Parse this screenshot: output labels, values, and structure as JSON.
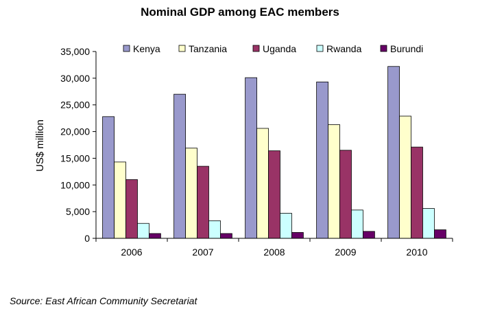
{
  "chart_data": {
    "type": "bar",
    "title": "Nominal GDP among EAC members",
    "xlabel": "",
    "ylabel": "US$ million",
    "categories": [
      "2006",
      "2007",
      "2008",
      "2009",
      "2010"
    ],
    "series": [
      {
        "name": "Kenya",
        "color": "#9999cc",
        "values": [
          22800,
          27000,
          30100,
          29300,
          32200
        ]
      },
      {
        "name": "Tanzania",
        "color": "#ffffcc",
        "values": [
          14300,
          16900,
          20600,
          21300,
          22900
        ]
      },
      {
        "name": "Uganda",
        "color": "#993366",
        "values": [
          11000,
          13500,
          16400,
          16500,
          17100
        ]
      },
      {
        "name": "Rwanda",
        "color": "#ccffff",
        "values": [
          2800,
          3300,
          4700,
          5300,
          5600
        ]
      },
      {
        "name": "Burundi",
        "color": "#660066",
        "values": [
          900,
          900,
          1100,
          1300,
          1600
        ]
      }
    ],
    "ylim": [
      0,
      35000
    ],
    "yticks": [
      0,
      5000,
      10000,
      15000,
      20000,
      25000,
      30000,
      35000
    ],
    "ytick_labels": [
      "0",
      "5,000",
      "10,000",
      "15,000",
      "20,000",
      "25,000",
      "30,000",
      "35,000"
    ],
    "grid": false,
    "legend_position": "top"
  },
  "source": "Source: East African Community Secretariat"
}
